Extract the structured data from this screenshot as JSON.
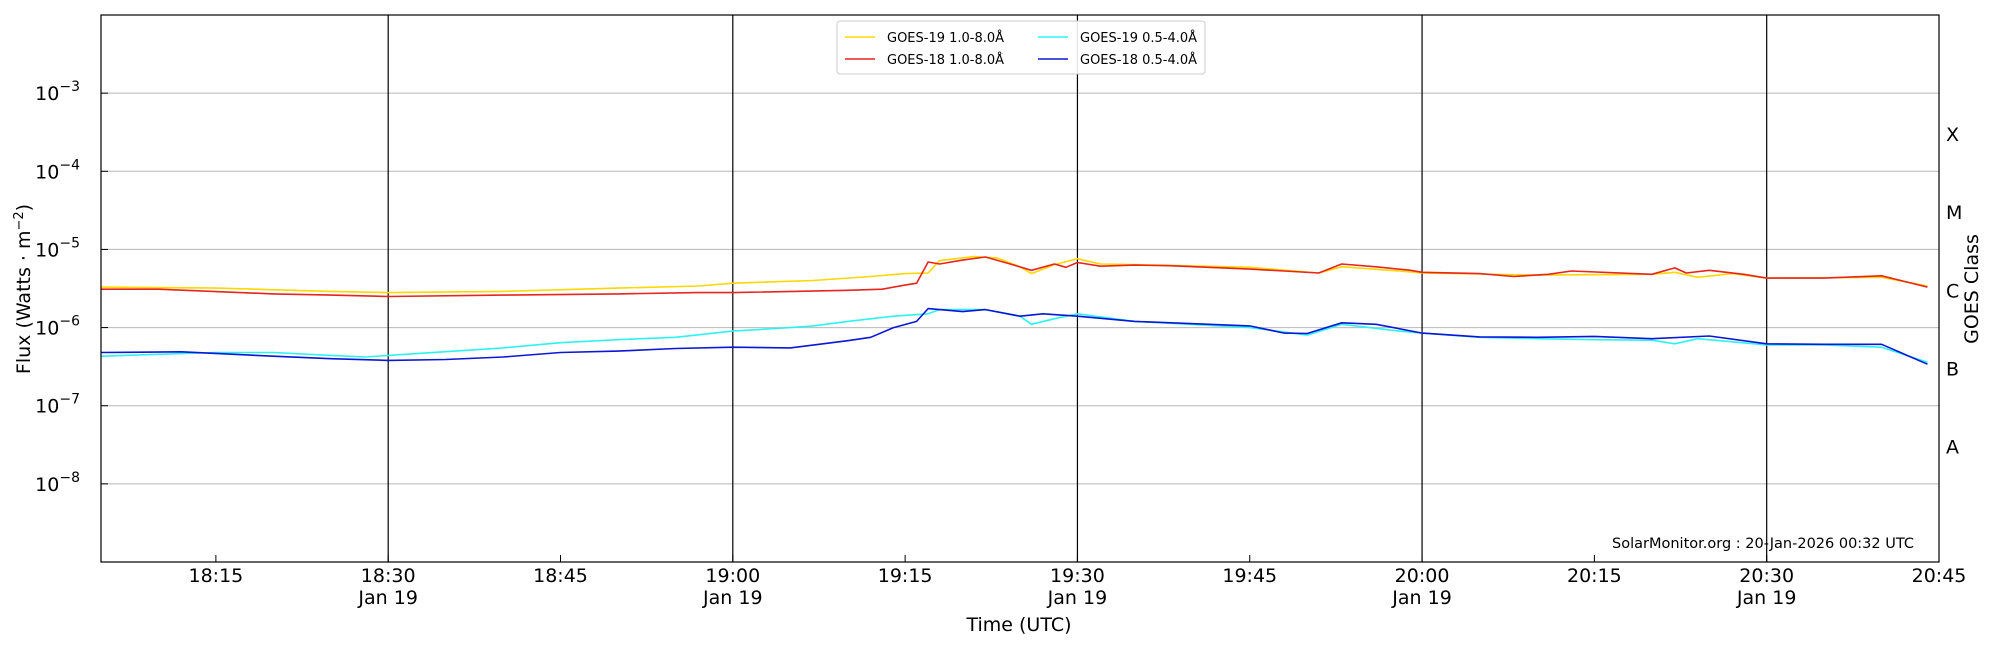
{
  "chart_data": {
    "type": "line",
    "title": "",
    "xlabel": "Time (UTC)",
    "ylabel": "Flux (Watts · m",
    "ylabel_sup": "−2",
    "ylabel_close": ")",
    "y_scale": "log",
    "ylim": [
      1e-09,
      0.01
    ],
    "xlim": [
      "18:05",
      "20:45"
    ],
    "grid": "horizontal at each decade",
    "legend_placement": "top-center",
    "credit": "SolarMonitor.org : 20-Jan-2026 00:32 UTC",
    "x_ticks": [
      {
        "time": "18:15",
        "label": "18:15",
        "date": ""
      },
      {
        "time": "18:30",
        "label": "18:30",
        "date": "Jan 19"
      },
      {
        "time": "18:45",
        "label": "18:45",
        "date": ""
      },
      {
        "time": "19:00",
        "label": "19:00",
        "date": "Jan 19"
      },
      {
        "time": "19:15",
        "label": "19:15",
        "date": ""
      },
      {
        "time": "19:30",
        "label": "19:30",
        "date": "Jan 19"
      },
      {
        "time": "19:45",
        "label": "19:45",
        "date": ""
      },
      {
        "time": "20:00",
        "label": "20:00",
        "date": "Jan 19"
      },
      {
        "time": "20:15",
        "label": "20:15",
        "date": ""
      },
      {
        "time": "20:30",
        "label": "20:30",
        "date": "Jan 19"
      },
      {
        "time": "20:45",
        "label": "20:45",
        "date": ""
      }
    ],
    "vertical_lines": [
      "18:30",
      "19:00",
      "19:30",
      "20:00",
      "20:30"
    ],
    "y_ticks": [
      {
        "value": 0.001,
        "mantissa": "10",
        "exp": "−3"
      },
      {
        "value": 0.0001,
        "mantissa": "10",
        "exp": "−4"
      },
      {
        "value": 1e-05,
        "mantissa": "10",
        "exp": "−5"
      },
      {
        "value": 1e-06,
        "mantissa": "10",
        "exp": "−6"
      },
      {
        "value": 1e-07,
        "mantissa": "10",
        "exp": "−7"
      },
      {
        "value": 1e-08,
        "mantissa": "10",
        "exp": "−8"
      }
    ],
    "right_axis_label": "GOES Class",
    "goes_classes": [
      {
        "label": "X",
        "at": 0.0003
      },
      {
        "label": "M",
        "at": 3e-05
      },
      {
        "label": "C",
        "at": 3e-06
      },
      {
        "label": "B",
        "at": 3e-07
      },
      {
        "label": "A",
        "at": 3e-08
      }
    ],
    "series": [
      {
        "name": "GOES-19 1.0-8.0Å",
        "color": "#ffd700",
        "points": [
          [
            "18:05",
            3.3e-06
          ],
          [
            "18:15",
            3.2e-06
          ],
          [
            "18:25",
            2.9e-06
          ],
          [
            "18:30",
            2.8e-06
          ],
          [
            "18:40",
            2.9e-06
          ],
          [
            "18:50",
            3.2e-06
          ],
          [
            "18:57",
            3.4e-06
          ],
          [
            "19:00",
            3.7e-06
          ],
          [
            "19:07",
            4e-06
          ],
          [
            "19:12",
            4.5e-06
          ],
          [
            "19:15",
            4.9e-06
          ],
          [
            "19:17",
            5e-06
          ],
          [
            "19:18",
            7.2e-06
          ],
          [
            "19:21",
            8.1e-06
          ],
          [
            "19:23",
            7.8e-06
          ],
          [
            "19:25",
            6e-06
          ],
          [
            "19:26",
            4.9e-06
          ],
          [
            "19:28",
            6.4e-06
          ],
          [
            "19:30",
            7.6e-06
          ],
          [
            "19:32",
            6.5e-06
          ],
          [
            "19:37",
            6.3e-06
          ],
          [
            "19:45",
            5.9e-06
          ],
          [
            "19:51",
            5e-06
          ],
          [
            "19:53",
            6e-06
          ],
          [
            "19:58",
            5.3e-06
          ],
          [
            "20:00",
            5e-06
          ],
          [
            "20:10",
            4.7e-06
          ],
          [
            "20:20",
            4.8e-06
          ],
          [
            "20:22",
            5.1e-06
          ],
          [
            "20:24",
            4.4e-06
          ],
          [
            "20:27",
            4.9e-06
          ],
          [
            "20:30",
            4.3e-06
          ],
          [
            "20:40",
            4.4e-06
          ],
          [
            "20:44",
            3.4e-06
          ]
        ]
      },
      {
        "name": "GOES-18 1.0-8.0Å",
        "color": "#e8251c",
        "points": [
          [
            "18:05",
            3.1e-06
          ],
          [
            "18:10",
            3.1e-06
          ],
          [
            "18:20",
            2.7e-06
          ],
          [
            "18:25",
            2.6e-06
          ],
          [
            "18:30",
            2.5e-06
          ],
          [
            "18:40",
            2.6e-06
          ],
          [
            "18:50",
            2.7e-06
          ],
          [
            "18:57",
            2.8e-06
          ],
          [
            "19:00",
            2.8e-06
          ],
          [
            "19:10",
            3e-06
          ],
          [
            "19:13",
            3.1e-06
          ],
          [
            "19:15",
            3.5e-06
          ],
          [
            "19:16",
            3.7e-06
          ],
          [
            "19:17",
            6.9e-06
          ],
          [
            "19:18",
            6.5e-06
          ],
          [
            "19:20",
            7.3e-06
          ],
          [
            "19:22",
            8e-06
          ],
          [
            "19:24",
            6.6e-06
          ],
          [
            "19:26",
            5.4e-06
          ],
          [
            "19:28",
            6.5e-06
          ],
          [
            "19:29",
            5.9e-06
          ],
          [
            "19:30",
            6.8e-06
          ],
          [
            "19:32",
            6.1e-06
          ],
          [
            "19:35",
            6.3e-06
          ],
          [
            "19:38",
            6.2e-06
          ],
          [
            "19:45",
            5.6e-06
          ],
          [
            "19:48",
            5.3e-06
          ],
          [
            "19:51",
            5e-06
          ],
          [
            "19:53",
            6.5e-06
          ],
          [
            "19:56",
            6e-06
          ],
          [
            "19:59",
            5.4e-06
          ],
          [
            "20:00",
            5.1e-06
          ],
          [
            "20:05",
            4.9e-06
          ],
          [
            "20:08",
            4.5e-06
          ],
          [
            "20:11",
            4.8e-06
          ],
          [
            "20:13",
            5.3e-06
          ],
          [
            "20:20",
            4.8e-06
          ],
          [
            "20:22",
            5.8e-06
          ],
          [
            "20:23",
            5e-06
          ],
          [
            "20:25",
            5.4e-06
          ],
          [
            "20:28",
            4.8e-06
          ],
          [
            "20:30",
            4.3e-06
          ],
          [
            "20:35",
            4.3e-06
          ],
          [
            "20:40",
            4.6e-06
          ],
          [
            "20:44",
            3.3e-06
          ]
        ]
      },
      {
        "name": "GOES-19 0.5-4.0Å",
        "color": "#2ef2f2",
        "points": [
          [
            "18:05",
            4.3e-07
          ],
          [
            "18:15",
            4.8e-07
          ],
          [
            "18:20",
            4.8e-07
          ],
          [
            "18:25",
            4.4e-07
          ],
          [
            "18:28",
            4.2e-07
          ],
          [
            "18:32",
            4.6e-07
          ],
          [
            "18:40",
            5.5e-07
          ],
          [
            "18:45",
            6.4e-07
          ],
          [
            "18:50",
            7e-07
          ],
          [
            "18:55",
            7.5e-07
          ],
          [
            "19:00",
            9e-07
          ],
          [
            "19:05",
            1e-06
          ],
          [
            "19:07",
            1.05e-06
          ],
          [
            "19:10",
            1.2e-06
          ],
          [
            "19:14",
            1.4e-06
          ],
          [
            "19:17",
            1.5e-06
          ],
          [
            "19:18",
            1.7e-06
          ],
          [
            "19:22",
            1.7e-06
          ],
          [
            "19:25",
            1.4e-06
          ],
          [
            "19:26",
            1.1e-06
          ],
          [
            "19:28",
            1.3e-06
          ],
          [
            "19:30",
            1.5e-06
          ],
          [
            "19:35",
            1.2e-06
          ],
          [
            "19:45",
            1e-06
          ],
          [
            "19:50",
            8e-07
          ],
          [
            "19:53",
            1.1e-06
          ],
          [
            "19:58",
            9e-07
          ],
          [
            "20:00",
            8.5e-07
          ],
          [
            "20:05",
            7.5e-07
          ],
          [
            "20:10",
            7.2e-07
          ],
          [
            "20:15",
            7e-07
          ],
          [
            "20:20",
            6.9e-07
          ],
          [
            "20:22",
            6.2e-07
          ],
          [
            "20:24",
            7.2e-07
          ],
          [
            "20:30",
            6e-07
          ],
          [
            "20:35",
            6e-07
          ],
          [
            "20:40",
            5.6e-07
          ],
          [
            "20:44",
            3.6e-07
          ]
        ]
      },
      {
        "name": "GOES-18 0.5-4.0Å",
        "color": "#0b16d6",
        "points": [
          [
            "18:05",
            4.8e-07
          ],
          [
            "18:12",
            4.9e-07
          ],
          [
            "18:20",
            4.3e-07
          ],
          [
            "18:25",
            4e-07
          ],
          [
            "18:30",
            3.8e-07
          ],
          [
            "18:35",
            3.9e-07
          ],
          [
            "18:40",
            4.2e-07
          ],
          [
            "18:45",
            4.8e-07
          ],
          [
            "18:50",
            5e-07
          ],
          [
            "18:55",
            5.4e-07
          ],
          [
            "19:00",
            5.6e-07
          ],
          [
            "19:05",
            5.5e-07
          ],
          [
            "19:10",
            6.8e-07
          ],
          [
            "19:12",
            7.5e-07
          ],
          [
            "19:14",
            1e-06
          ],
          [
            "19:16",
            1.2e-06
          ],
          [
            "19:17",
            1.75e-06
          ],
          [
            "19:20",
            1.6e-06
          ],
          [
            "19:22",
            1.7e-06
          ],
          [
            "19:25",
            1.4e-06
          ],
          [
            "19:27",
            1.5e-06
          ],
          [
            "19:30",
            1.4e-06
          ],
          [
            "19:35",
            1.2e-06
          ],
          [
            "19:45",
            1.05e-06
          ],
          [
            "19:48",
            8.5e-07
          ],
          [
            "19:50",
            8.4e-07
          ],
          [
            "19:53",
            1.15e-06
          ],
          [
            "19:56",
            1.1e-06
          ],
          [
            "20:00",
            8.5e-07
          ],
          [
            "20:05",
            7.6e-07
          ],
          [
            "20:10",
            7.5e-07
          ],
          [
            "20:15",
            7.7e-07
          ],
          [
            "20:20",
            7.2e-07
          ],
          [
            "20:25",
            7.8e-07
          ],
          [
            "20:30",
            6.2e-07
          ],
          [
            "20:35",
            6.1e-07
          ],
          [
            "20:40",
            6.1e-07
          ],
          [
            "20:44",
            3.4e-07
          ]
        ]
      }
    ]
  }
}
